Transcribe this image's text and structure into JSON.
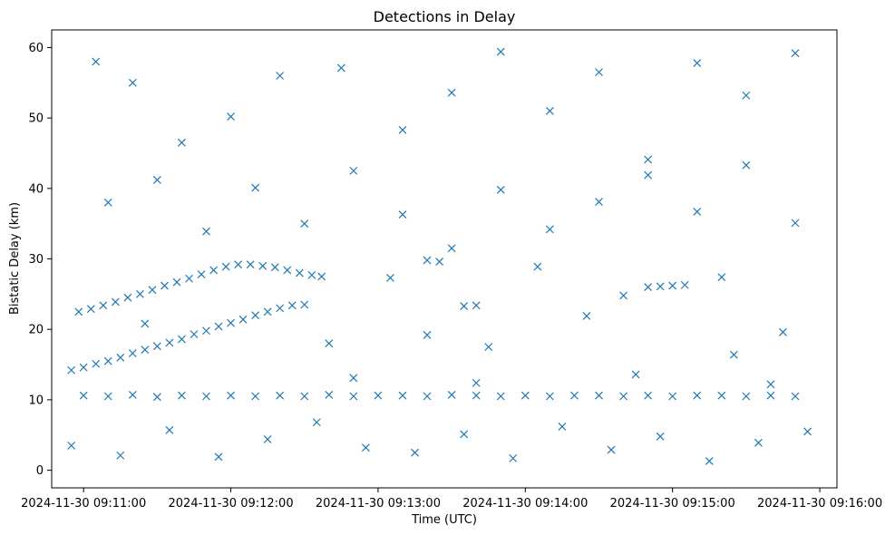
{
  "chart_data": {
    "type": "scatter",
    "title": "Detections in Delay",
    "xlabel": "Time (UTC)",
    "ylabel": "Bistatic Delay (km)",
    "marker": "x",
    "color": "#1f77b4",
    "grid": false,
    "x_format": "YYYY-MM-DD HH:MM:SS",
    "xlim": [
      "2024-11-30 09:10:47",
      "2024-11-30 09:16:07"
    ],
    "ylim": [
      -2.5,
      62.5
    ],
    "x_ticks": [
      "2024-11-30 09:11:00",
      "2024-11-30 09:12:00",
      "2024-11-30 09:13:00",
      "2024-11-30 09:14:00",
      "2024-11-30 09:15:00",
      "2024-11-30 09:16:00"
    ],
    "y_ticks": [
      0,
      10,
      20,
      30,
      40,
      50,
      60
    ],
    "series": [
      {
        "points": [
          [
            "2024-11-30 09:10:55",
            14.2
          ],
          [
            "2024-11-30 09:11:00",
            14.6
          ],
          [
            "2024-11-30 09:11:05",
            15.1
          ],
          [
            "2024-11-30 09:11:10",
            15.5
          ],
          [
            "2024-11-30 09:11:15",
            16.0
          ],
          [
            "2024-11-30 09:11:20",
            16.6
          ],
          [
            "2024-11-30 09:11:25",
            17.1
          ],
          [
            "2024-11-30 09:11:30",
            17.6
          ],
          [
            "2024-11-30 09:11:35",
            18.1
          ],
          [
            "2024-11-30 09:11:40",
            18.6
          ],
          [
            "2024-11-30 09:11:45",
            19.3
          ],
          [
            "2024-11-30 09:11:50",
            19.8
          ],
          [
            "2024-11-30 09:11:55",
            20.4
          ],
          [
            "2024-11-30 09:12:00",
            20.9
          ],
          [
            "2024-11-30 09:12:05",
            21.4
          ],
          [
            "2024-11-30 09:12:10",
            22.0
          ],
          [
            "2024-11-30 09:12:15",
            22.5
          ],
          [
            "2024-11-30 09:12:20",
            23.0
          ],
          [
            "2024-11-30 09:12:25",
            23.4
          ],
          [
            "2024-11-30 09:12:30",
            23.5
          ],
          [
            "2024-11-30 09:10:58",
            22.5
          ],
          [
            "2024-11-30 09:11:03",
            22.9
          ],
          [
            "2024-11-30 09:11:08",
            23.4
          ],
          [
            "2024-11-30 09:11:13",
            23.9
          ],
          [
            "2024-11-30 09:11:18",
            24.5
          ],
          [
            "2024-11-30 09:11:23",
            25.0
          ],
          [
            "2024-11-30 09:11:28",
            25.6
          ],
          [
            "2024-11-30 09:11:33",
            26.2
          ],
          [
            "2024-11-30 09:11:38",
            26.7
          ],
          [
            "2024-11-30 09:11:43",
            27.2
          ],
          [
            "2024-11-30 09:11:48",
            27.8
          ],
          [
            "2024-11-30 09:11:53",
            28.4
          ],
          [
            "2024-11-30 09:11:58",
            28.9
          ],
          [
            "2024-11-30 09:12:03",
            29.2
          ],
          [
            "2024-11-30 09:12:08",
            29.2
          ],
          [
            "2024-11-30 09:12:13",
            29.0
          ],
          [
            "2024-11-30 09:12:18",
            28.8
          ],
          [
            "2024-11-30 09:12:23",
            28.4
          ],
          [
            "2024-11-30 09:12:28",
            28.0
          ],
          [
            "2024-11-30 09:12:33",
            27.7
          ],
          [
            "2024-11-30 09:12:37",
            27.5
          ],
          [
            "2024-11-30 09:11:00",
            10.6
          ],
          [
            "2024-11-30 09:11:10",
            10.5
          ],
          [
            "2024-11-30 09:11:20",
            10.7
          ],
          [
            "2024-11-30 09:11:30",
            10.4
          ],
          [
            "2024-11-30 09:11:40",
            10.6
          ],
          [
            "2024-11-30 09:11:50",
            10.5
          ],
          [
            "2024-11-30 09:12:00",
            10.6
          ],
          [
            "2024-11-30 09:12:10",
            10.5
          ],
          [
            "2024-11-30 09:12:20",
            10.6
          ],
          [
            "2024-11-30 09:12:30",
            10.5
          ],
          [
            "2024-11-30 09:12:40",
            10.7
          ],
          [
            "2024-11-30 09:12:50",
            10.5
          ],
          [
            "2024-11-30 09:13:00",
            10.6
          ],
          [
            "2024-11-30 09:13:10",
            10.6
          ],
          [
            "2024-11-30 09:13:20",
            10.5
          ],
          [
            "2024-11-30 09:13:30",
            10.7
          ],
          [
            "2024-11-30 09:13:40",
            10.6
          ],
          [
            "2024-11-30 09:13:50",
            10.5
          ],
          [
            "2024-11-30 09:14:00",
            10.6
          ],
          [
            "2024-11-30 09:14:10",
            10.5
          ],
          [
            "2024-11-30 09:14:20",
            10.6
          ],
          [
            "2024-11-30 09:14:30",
            10.6
          ],
          [
            "2024-11-30 09:14:40",
            10.5
          ],
          [
            "2024-11-30 09:14:50",
            10.6
          ],
          [
            "2024-11-30 09:15:00",
            10.5
          ],
          [
            "2024-11-30 09:15:10",
            10.6
          ],
          [
            "2024-11-30 09:15:20",
            10.6
          ],
          [
            "2024-11-30 09:15:30",
            10.5
          ],
          [
            "2024-11-30 09:15:40",
            10.6
          ],
          [
            "2024-11-30 09:15:50",
            10.5
          ],
          [
            "2024-11-30 09:13:20",
            29.8
          ],
          [
            "2024-11-30 09:13:25",
            29.6
          ],
          [
            "2024-11-30 09:13:35",
            23.3
          ],
          [
            "2024-11-30 09:13:40",
            23.4
          ],
          [
            "2024-11-30 09:14:50",
            26.0
          ],
          [
            "2024-11-30 09:14:55",
            26.1
          ],
          [
            "2024-11-30 09:15:00",
            26.2
          ],
          [
            "2024-11-30 09:15:05",
            26.3
          ],
          [
            "2024-11-30 09:11:05",
            58.0
          ],
          [
            "2024-11-30 09:11:20",
            55.0
          ],
          [
            "2024-11-30 09:11:40",
            46.5
          ],
          [
            "2024-11-30 09:12:00",
            50.2
          ],
          [
            "2024-11-30 09:12:20",
            56.0
          ],
          [
            "2024-11-30 09:12:45",
            57.1
          ],
          [
            "2024-11-30 09:13:10",
            48.3
          ],
          [
            "2024-11-30 09:13:30",
            53.6
          ],
          [
            "2024-11-30 09:13:50",
            59.4
          ],
          [
            "2024-11-30 09:14:10",
            51.0
          ],
          [
            "2024-11-30 09:14:30",
            56.5
          ],
          [
            "2024-11-30 09:14:50",
            44.1
          ],
          [
            "2024-11-30 09:15:10",
            57.8
          ],
          [
            "2024-11-30 09:15:30",
            53.2
          ],
          [
            "2024-11-30 09:15:50",
            59.2
          ],
          [
            "2024-11-30 09:11:10",
            38.0
          ],
          [
            "2024-11-30 09:11:30",
            41.2
          ],
          [
            "2024-11-30 09:11:50",
            33.9
          ],
          [
            "2024-11-30 09:12:10",
            40.1
          ],
          [
            "2024-11-30 09:12:30",
            35.0
          ],
          [
            "2024-11-30 09:12:50",
            42.5
          ],
          [
            "2024-11-30 09:13:10",
            36.3
          ],
          [
            "2024-11-30 09:13:30",
            31.5
          ],
          [
            "2024-11-30 09:13:50",
            39.8
          ],
          [
            "2024-11-30 09:14:10",
            34.2
          ],
          [
            "2024-11-30 09:14:30",
            38.1
          ],
          [
            "2024-11-30 09:14:50",
            41.9
          ],
          [
            "2024-11-30 09:15:10",
            36.7
          ],
          [
            "2024-11-30 09:15:30",
            43.3
          ],
          [
            "2024-11-30 09:15:50",
            35.1
          ],
          [
            "2024-11-30 09:10:55",
            3.5
          ],
          [
            "2024-11-30 09:11:15",
            2.1
          ],
          [
            "2024-11-30 09:11:35",
            5.7
          ],
          [
            "2024-11-30 09:11:55",
            1.9
          ],
          [
            "2024-11-30 09:12:15",
            4.4
          ],
          [
            "2024-11-30 09:12:35",
            6.8
          ],
          [
            "2024-11-30 09:12:55",
            3.2
          ],
          [
            "2024-11-30 09:13:15",
            2.5
          ],
          [
            "2024-11-30 09:13:35",
            5.1
          ],
          [
            "2024-11-30 09:13:55",
            1.7
          ],
          [
            "2024-11-30 09:14:15",
            6.2
          ],
          [
            "2024-11-30 09:14:35",
            2.9
          ],
          [
            "2024-11-30 09:14:55",
            4.8
          ],
          [
            "2024-11-30 09:15:15",
            1.3
          ],
          [
            "2024-11-30 09:15:35",
            3.9
          ],
          [
            "2024-11-30 09:15:55",
            5.5
          ],
          [
            "2024-11-30 09:11:25",
            20.8
          ],
          [
            "2024-11-30 09:12:40",
            18.0
          ],
          [
            "2024-11-30 09:13:20",
            19.2
          ],
          [
            "2024-11-30 09:13:45",
            17.5
          ],
          [
            "2024-11-30 09:14:25",
            21.9
          ],
          [
            "2024-11-30 09:14:40",
            24.8
          ],
          [
            "2024-11-30 09:15:25",
            16.4
          ],
          [
            "2024-11-30 09:15:45",
            19.6
          ],
          [
            "2024-11-30 09:13:05",
            27.3
          ],
          [
            "2024-11-30 09:14:05",
            28.9
          ],
          [
            "2024-11-30 09:15:20",
            27.4
          ],
          [
            "2024-11-30 09:12:50",
            13.1
          ],
          [
            "2024-11-30 09:13:40",
            12.4
          ],
          [
            "2024-11-30 09:14:45",
            13.6
          ],
          [
            "2024-11-30 09:15:40",
            12.2
          ]
        ]
      }
    ]
  }
}
